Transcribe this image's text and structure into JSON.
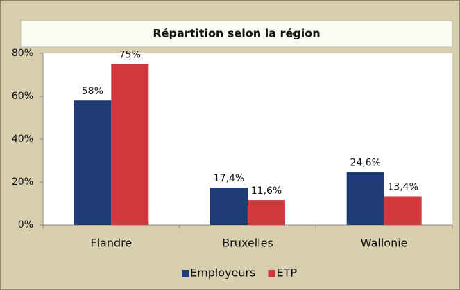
{
  "chart_data": {
    "type": "bar",
    "title": "Répartition selon la région",
    "categories": [
      "Flandre",
      "Bruxelles",
      "Wallonie"
    ],
    "series": [
      {
        "name": "Employeurs",
        "color": "#1f3b78",
        "values": [
          58,
          17.4,
          24.6
        ],
        "value_labels": [
          "58%",
          "17,4%",
          "24,6%"
        ]
      },
      {
        "name": "ETP",
        "color": "#d2373b",
        "values": [
          75,
          11.6,
          13.4
        ],
        "value_labels": [
          "75%",
          "11,6%",
          "13,4%"
        ]
      }
    ],
    "ylim": [
      0,
      80
    ],
    "yticks": [
      {
        "value": 0,
        "label": "0%"
      },
      {
        "value": 20,
        "label": "20%"
      },
      {
        "value": 40,
        "label": "40%"
      },
      {
        "value": 60,
        "label": "60%"
      },
      {
        "value": 80,
        "label": "80%"
      }
    ],
    "grid": false,
    "legend": "bottom"
  }
}
